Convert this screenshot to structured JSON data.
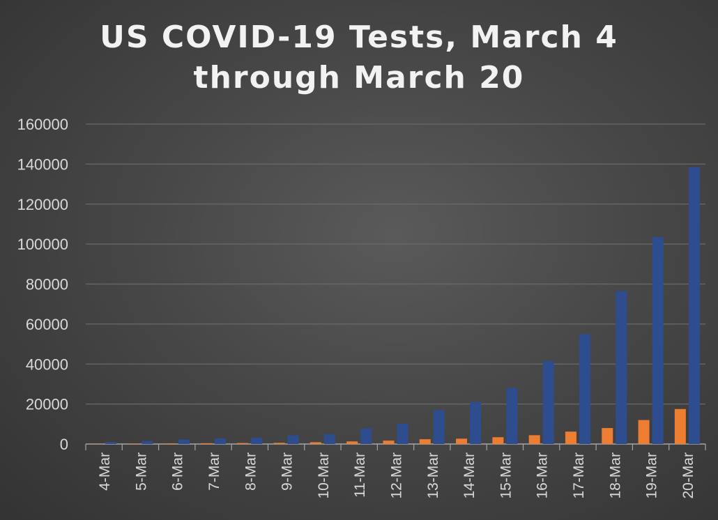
{
  "chart_data": {
    "type": "bar",
    "title_lines": [
      "US COVID-19 Tests, March 4",
      "through March 20"
    ],
    "categories": [
      "4-Mar",
      "5-Mar",
      "6-Mar",
      "7-Mar",
      "8-Mar",
      "9-Mar",
      "10-Mar",
      "11-Mar",
      "12-Mar",
      "13-Mar",
      "14-Mar",
      "15-Mar",
      "16-Mar",
      "17-Mar",
      "18-Mar",
      "19-Mar",
      "20-Mar"
    ],
    "series": [
      {
        "values": [
          100,
          200,
          300,
          400,
          500,
          600,
          900,
          1300,
          1700,
          2400,
          2700,
          3400,
          4400,
          6200,
          8000,
          12000,
          17500
        ],
        "color": "#ed7d31"
      },
      {
        "values": [
          1000,
          1500,
          2200,
          2800,
          3200,
          4300,
          5000,
          7800,
          10000,
          17000,
          21000,
          28000,
          41500,
          55000,
          76500,
          103500,
          138500
        ],
        "color": "#2e4d8f"
      }
    ],
    "y_ticks": [
      "0",
      "20000",
      "40000",
      "60000",
      "80000",
      "100000",
      "120000",
      "140000",
      "160000"
    ],
    "ylim": [
      0,
      160000
    ],
    "xlabel": "",
    "ylabel": "",
    "grid": true,
    "legend": "none",
    "colors": {
      "gridline": "#6a6a6a",
      "axis": "#a6a6a6",
      "text": "#d9d9d9"
    }
  }
}
